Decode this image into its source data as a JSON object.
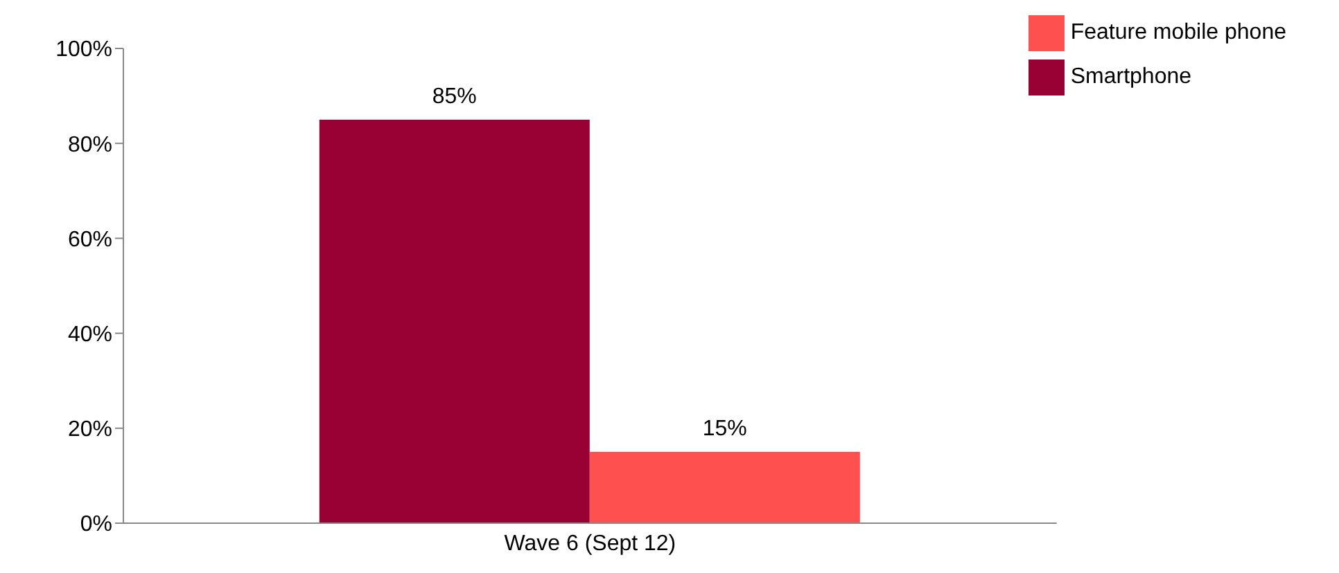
{
  "chart_data": {
    "type": "bar",
    "categories": [
      "Wave 6 (Sept 12)"
    ],
    "series": [
      {
        "name": "Smartphone",
        "color": "#990033",
        "values": [
          85
        ],
        "value_labels": [
          "85%"
        ]
      },
      {
        "name": "Feature mobile phone",
        "color": "#ff5050",
        "values": [
          15
        ],
        "value_labels": [
          "15%"
        ]
      }
    ],
    "ylim": [
      0,
      100
    ],
    "yticks": [
      {
        "value": 0,
        "label": "0%"
      },
      {
        "value": 20,
        "label": "20%"
      },
      {
        "value": 40,
        "label": "40%"
      },
      {
        "value": 60,
        "label": "60%"
      },
      {
        "value": 80,
        "label": "80%"
      },
      {
        "value": 100,
        "label": "100%"
      }
    ],
    "grid": false,
    "legend": "top right"
  }
}
